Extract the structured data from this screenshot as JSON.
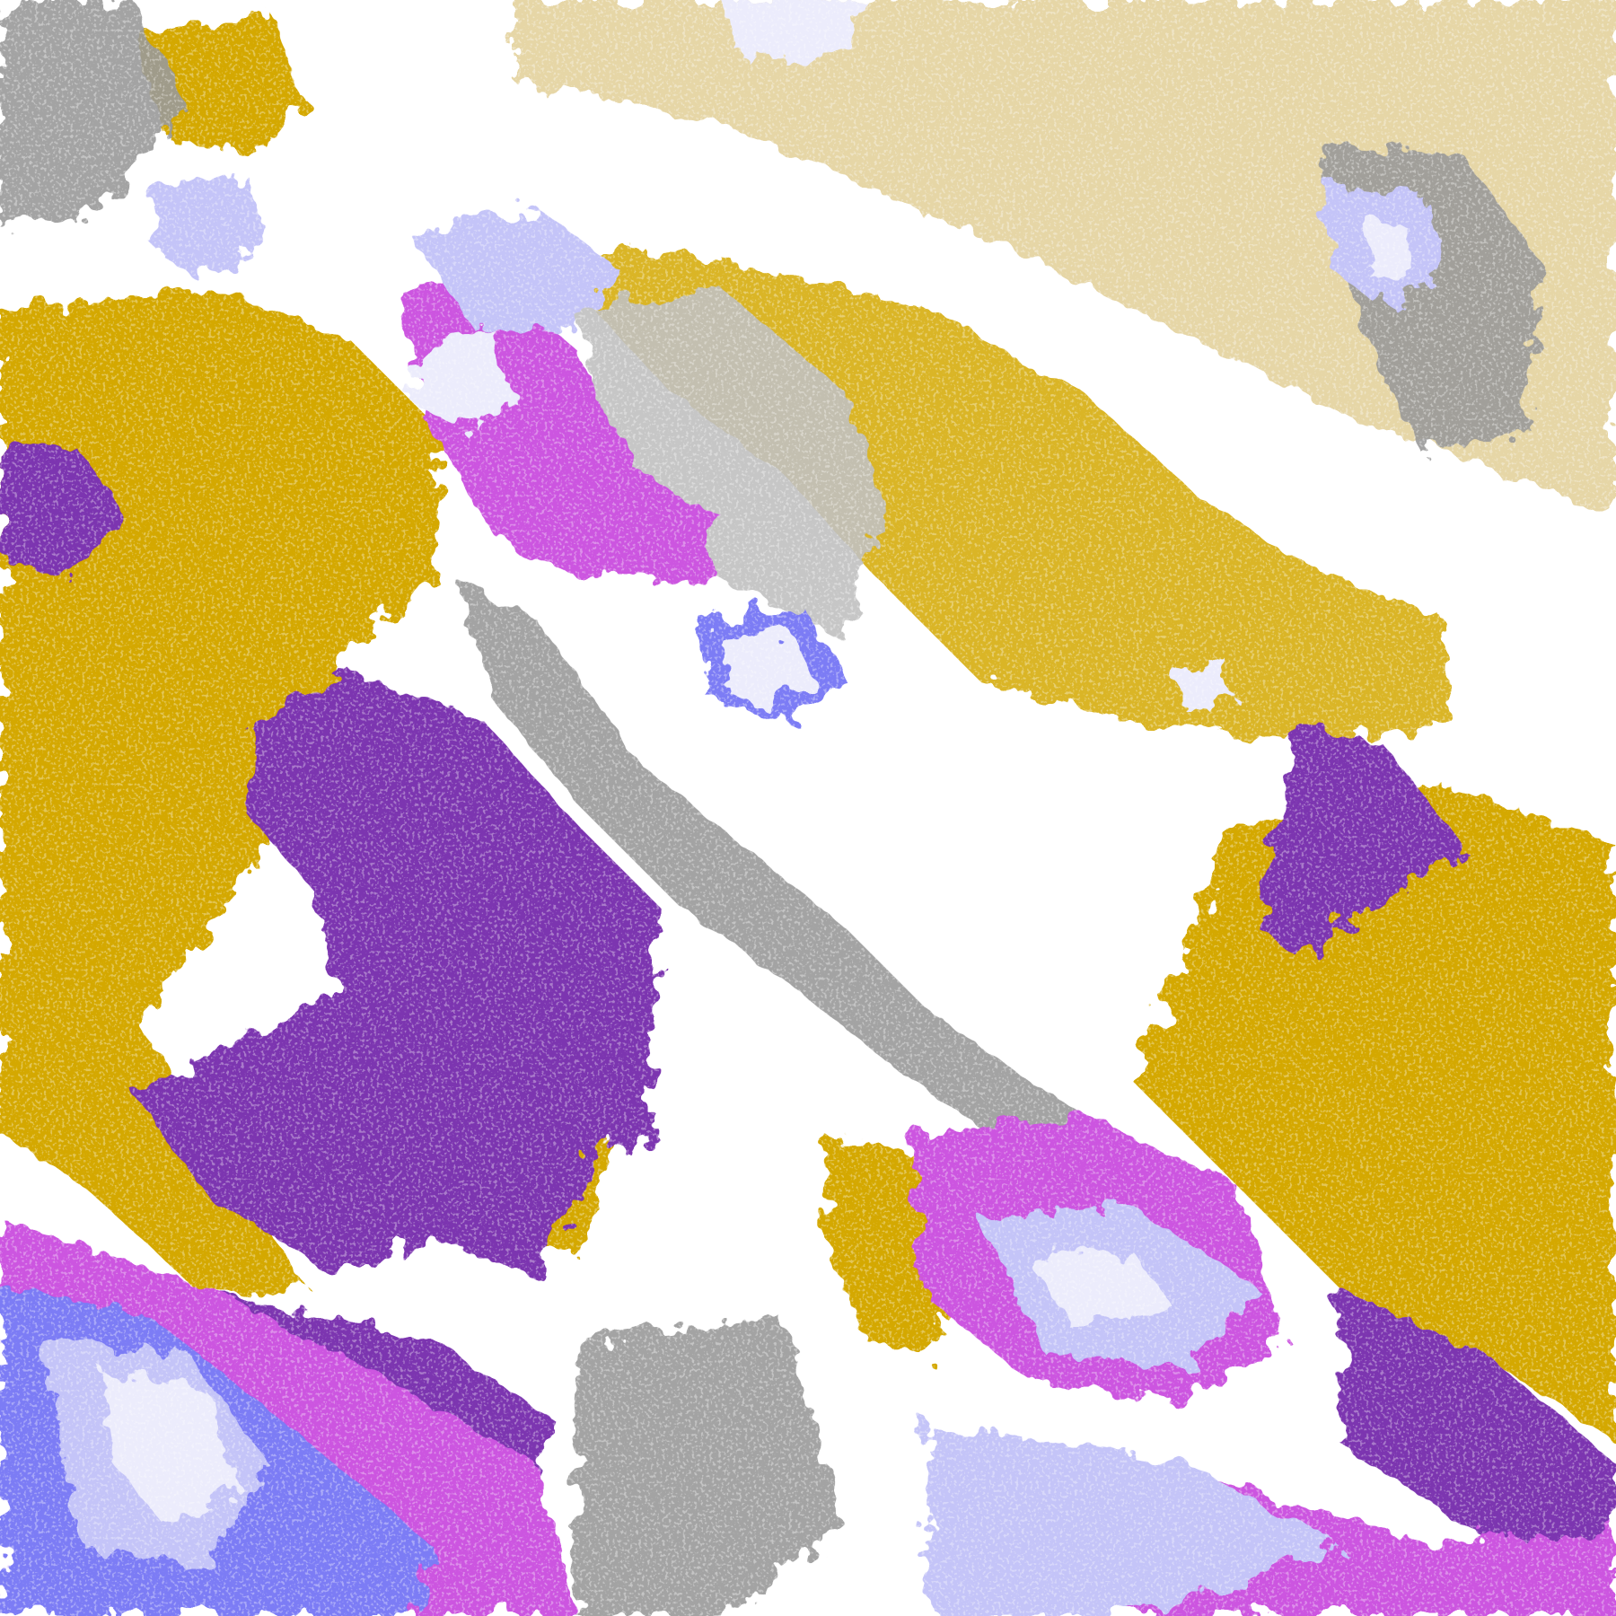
{
  "palette": {
    "clear": "#ffffff",
    "low_gold": "#d4a800",
    "low_gold_dark": "#b88a00",
    "ocean_purple": "#7b35b0",
    "magenta": "#cc55e0",
    "gray": "#9a9a9a",
    "light_gray": "#c0c0c0",
    "blue": "#7b7bf5",
    "lavender": "#c4c4f8",
    "pale": "#ececfc"
  }
}
